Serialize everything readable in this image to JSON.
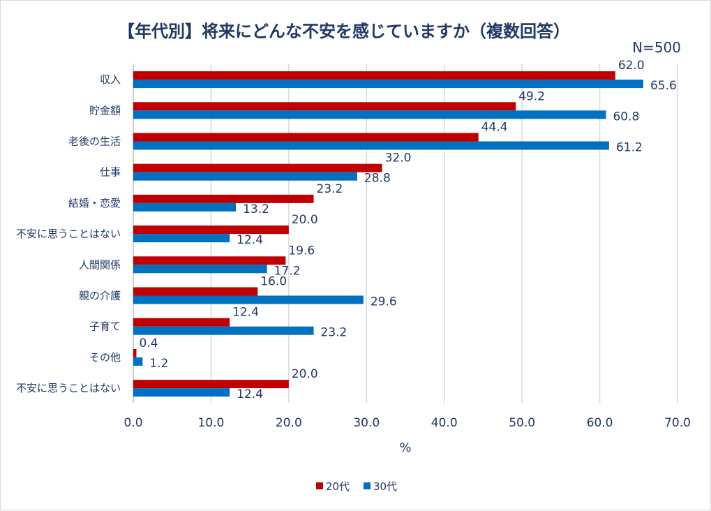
{
  "chart_data": {
    "type": "bar",
    "orientation": "horizontal",
    "title": "【年代別】将来にどんな不安を感じていますか（複数回答）",
    "subtitle": "N=500",
    "xlabel": "%",
    "ylabel": "",
    "xlim": [
      0,
      70
    ],
    "xticks": [
      "0.0",
      "10.0",
      "20.0",
      "30.0",
      "40.0",
      "50.0",
      "60.0",
      "70.0"
    ],
    "grid": true,
    "legend_position": "bottom",
    "categories": [
      "収入",
      "貯金額",
      "老後の生活",
      "仕事",
      "結婚・恋愛",
      "不安に思うことはない",
      "人間関係",
      "親の介護",
      "子育て",
      "その他",
      "不安に思うことはない"
    ],
    "series": [
      {
        "name": "20代",
        "color": "#C00000",
        "values": [
          62.0,
          49.2,
          44.4,
          32.0,
          23.2,
          20.0,
          19.6,
          16.0,
          12.4,
          0.4,
          20.0
        ]
      },
      {
        "name": "30代",
        "color": "#0070C0",
        "values": [
          65.6,
          60.8,
          61.2,
          28.8,
          13.2,
          12.4,
          17.2,
          29.6,
          23.2,
          1.2,
          12.4
        ]
      }
    ]
  }
}
